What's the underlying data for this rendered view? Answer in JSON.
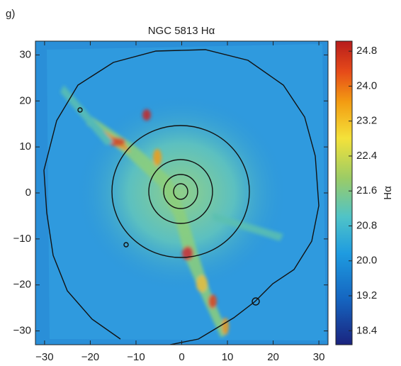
{
  "chart_data": {
    "type": "heatmap",
    "panel_label": "g)",
    "title": "NGC 5813 Hα",
    "xlim": [
      -32,
      32
    ],
    "ylim": [
      -33,
      33
    ],
    "xticks": [
      {
        "value": -30,
        "label": "−30"
      },
      {
        "value": -20,
        "label": "−20"
      },
      {
        "value": -10,
        "label": "−10"
      },
      0,
      10,
      20,
      30
    ],
    "yticks": [
      {
        "value": -30,
        "label": "−30"
      },
      {
        "value": -20,
        "label": "−20"
      },
      {
        "value": -10,
        "label": "−10"
      },
      0,
      10,
      20,
      30
    ],
    "colorbar": {
      "label": "Hα",
      "lim": [
        18.08,
        25.03
      ],
      "ticks": [
        18.4,
        19.2,
        {
          "value": 20,
          "label": "20.0"
        },
        20.8,
        21.6,
        22.4,
        23.2,
        {
          "value": 24,
          "label": "24.0"
        },
        24.8
      ]
    }
  }
}
